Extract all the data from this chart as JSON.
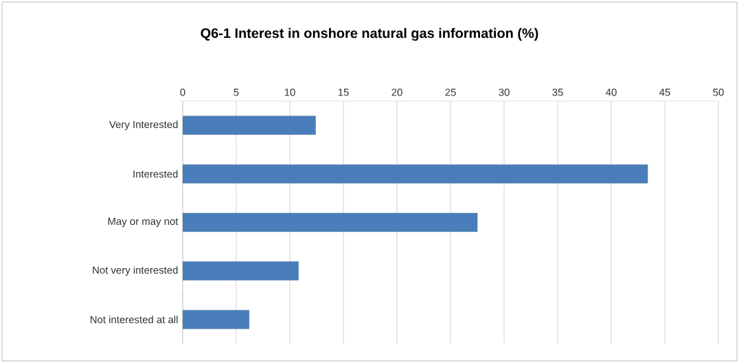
{
  "chart_data": {
    "type": "bar",
    "orientation": "horizontal",
    "title": "Q6-1 Interest in onshore natural gas information (%)",
    "categories": [
      "Very Interested",
      "Interested",
      "May or may not",
      "Not very interested",
      "Not interested at all"
    ],
    "values": [
      12.4,
      43.4,
      27.5,
      10.8,
      6.2
    ],
    "color": "#4a7ebb",
    "xlim": [
      0,
      50
    ],
    "xticks": [
      0,
      5,
      10,
      15,
      20,
      25,
      30,
      35,
      40,
      45,
      50
    ],
    "grid": "x"
  }
}
